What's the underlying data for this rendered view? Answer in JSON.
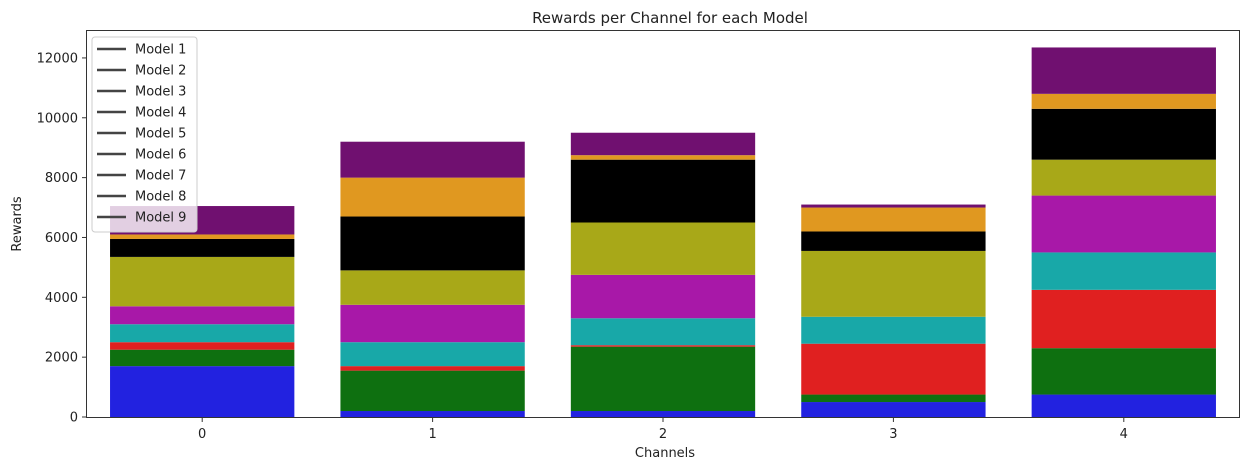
{
  "chart_data": {
    "type": "bar",
    "stacked": true,
    "title": "Rewards per Channel for each Model",
    "xlabel": "Channels",
    "ylabel": "Rewards",
    "categories": [
      "0",
      "1",
      "2",
      "3",
      "4"
    ],
    "ylim": [
      0,
      12900
    ],
    "yticks": [
      0,
      2000,
      4000,
      6000,
      8000,
      10000,
      12000
    ],
    "legend_position": "top-left",
    "grid": false,
    "series": [
      {
        "name": "Model 1",
        "color": "#2222e0",
        "values": [
          1700,
          200,
          200,
          500,
          750
        ]
      },
      {
        "name": "Model 2",
        "color": "#0e7010",
        "values": [
          550,
          1350,
          2150,
          250,
          1550
        ]
      },
      {
        "name": "Model 3",
        "color": "#e02020",
        "values": [
          250,
          150,
          50,
          1700,
          1950
        ]
      },
      {
        "name": "Model 4",
        "color": "#18a8a8",
        "values": [
          600,
          800,
          900,
          900,
          1250
        ]
      },
      {
        "name": "Model 5",
        "color": "#a818a8",
        "values": [
          600,
          1250,
          1450,
          0,
          1900
        ]
      },
      {
        "name": "Model 6",
        "color": "#a8a818",
        "values": [
          1650,
          1150,
          1750,
          2200,
          1200
        ]
      },
      {
        "name": "Model 7",
        "color": "#000000",
        "values": [
          600,
          1800,
          2100,
          650,
          1700
        ]
      },
      {
        "name": "Model 8",
        "color": "#e09820",
        "values": [
          150,
          1300,
          150,
          800,
          500
        ]
      },
      {
        "name": "Model 9",
        "color": "#701070",
        "values": [
          950,
          1200,
          750,
          100,
          1550
        ]
      }
    ]
  }
}
